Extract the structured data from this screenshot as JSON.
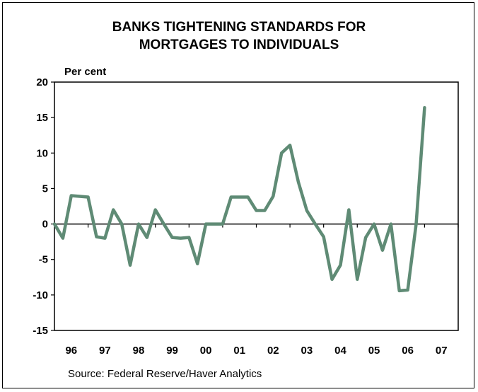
{
  "chart_data": {
    "type": "line",
    "title_lines": [
      "BANKS TIGHTENING STANDARDS FOR",
      "MORTGAGES TO INDIVIDUALS"
    ],
    "ylabel": "Per cent",
    "xlabel": "",
    "ylim": [
      -15,
      20
    ],
    "yticks": [
      20,
      15,
      10,
      5,
      0,
      -5,
      -10,
      -15
    ],
    "xlim": [
      1996,
      2008
    ],
    "xtick_labels": [
      "96",
      "97",
      "98",
      "99",
      "00",
      "01",
      "02",
      "03",
      "04",
      "05",
      "06",
      "07"
    ],
    "source": "Source: Federal Reserve/Haver Analytics",
    "series": [
      {
        "color": "#5f8b75",
        "x": [
          1996.0,
          1996.25,
          1996.5,
          1996.75,
          1997.0,
          1997.25,
          1997.5,
          1997.75,
          1998.0,
          1998.25,
          1998.5,
          1998.75,
          1999.0,
          1999.25,
          1999.5,
          1999.75,
          2000.0,
          2000.25,
          2000.5,
          2000.75,
          2001.0,
          2001.25,
          2001.5,
          2001.75,
          2002.0,
          2002.25,
          2002.5,
          2002.75,
          2003.0,
          2003.25,
          2003.5,
          2003.75,
          2004.0,
          2004.25,
          2004.5,
          2004.75,
          2005.0,
          2005.25,
          2005.5,
          2005.75,
          2006.0,
          2006.25,
          2006.5,
          2006.75,
          2007.0
        ],
        "y": [
          0,
          -2,
          4,
          3.9,
          3.8,
          -1.8,
          -2,
          2,
          0,
          -5.8,
          0,
          -1.9,
          2,
          0,
          -1.9,
          -2,
          -1.9,
          -5.6,
          0,
          0,
          0,
          3.8,
          3.8,
          3.8,
          1.9,
          1.9,
          3.9,
          10,
          11.1,
          5.9,
          1.9,
          0,
          -1.8,
          -7.8,
          -5.8,
          2,
          -7.8,
          -1.9,
          0,
          -3.7,
          0,
          -9.4,
          -9.3,
          0,
          16.4
        ]
      }
    ]
  }
}
